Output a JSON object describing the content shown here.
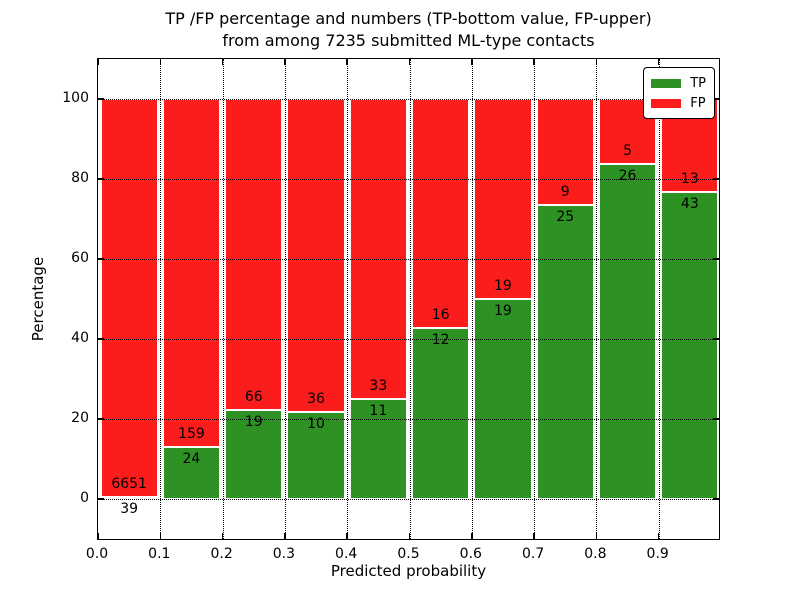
{
  "figure": {
    "title_line1": "TP /FP percentage and numbers (TP-bottom value, FP-upper)",
    "title_line2": "from among 7235 submitted ML-type contacts",
    "xlabel": "Predicted probability",
    "ylabel": "Percentage"
  },
  "chart_data": {
    "type": "bar",
    "stacked": true,
    "normalized_per_bar_to_percent": true,
    "title": "TP /FP percentage and numbers (TP-bottom value, FP-upper) from among 7235 submitted ML-type contacts",
    "xlabel": "Predicted probability",
    "ylabel": "Percentage",
    "total_contacts": 7235,
    "bin_starts": [
      0.0,
      0.1,
      0.2,
      0.3,
      0.4,
      0.5,
      0.6,
      0.7,
      0.8,
      0.9
    ],
    "bin_width": 0.1,
    "x_tick_labels": [
      "0.0",
      "0.1",
      "0.2",
      "0.3",
      "0.4",
      "0.5",
      "0.6",
      "0.7",
      "0.8",
      "0.9"
    ],
    "y_ticks": [
      0,
      20,
      40,
      60,
      80,
      100
    ],
    "xlim": [
      0.0,
      1.0
    ],
    "ylim": [
      -10.5,
      110
    ],
    "grid": "dotted",
    "legend": {
      "position": "upper right"
    },
    "series": [
      {
        "name": "TP",
        "color": "#2e9123",
        "values": [
          39,
          24,
          19,
          10,
          11,
          12,
          19,
          25,
          26,
          43
        ]
      },
      {
        "name": "FP",
        "color": "#fb1c1c",
        "values": [
          6651,
          159,
          66,
          36,
          33,
          16,
          19,
          9,
          5,
          13
        ]
      }
    ],
    "tp_percent_per_bin": [
      0.58,
      13.11,
      22.35,
      21.74,
      25.0,
      42.86,
      50.0,
      73.53,
      83.87,
      76.79
    ]
  }
}
